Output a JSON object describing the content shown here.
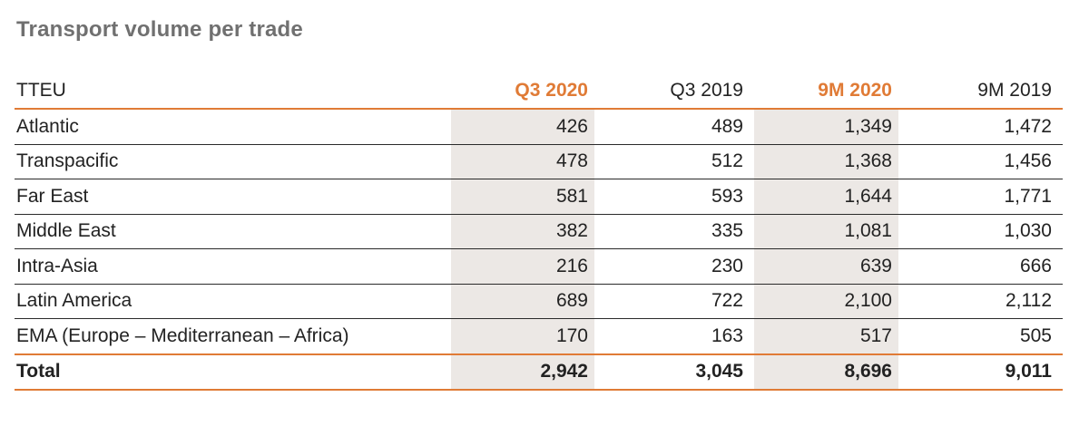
{
  "title": "Transport volume per trade",
  "table": {
    "unit_label": "TTEU",
    "columns": [
      "Q3 2020",
      "Q3 2019",
      "9M 2020",
      "9M 2019"
    ],
    "highlight_color": "#e07b36",
    "shading_color": "#ece8e5",
    "rows": [
      {
        "label": "Atlantic",
        "values": [
          "426",
          "489",
          "1,349",
          "1,472"
        ]
      },
      {
        "label": "Transpacific",
        "values": [
          "478",
          "512",
          "1,368",
          "1,456"
        ]
      },
      {
        "label": "Far East",
        "values": [
          "581",
          "593",
          "1,644",
          "1,771"
        ]
      },
      {
        "label": "Middle East",
        "values": [
          "382",
          "335",
          "1,081",
          "1,030"
        ]
      },
      {
        "label": "Intra-Asia",
        "values": [
          "216",
          "230",
          "639",
          "666"
        ]
      },
      {
        "label": "Latin America",
        "values": [
          "689",
          "722",
          "2,100",
          "2,112"
        ]
      },
      {
        "label": "EMA (Europe – Mediterranean – Africa)",
        "values": [
          "170",
          "163",
          "517",
          "505"
        ]
      }
    ],
    "total": {
      "label": "Total",
      "values": [
        "2,942",
        "3,045",
        "8,696",
        "9,011"
      ]
    }
  }
}
